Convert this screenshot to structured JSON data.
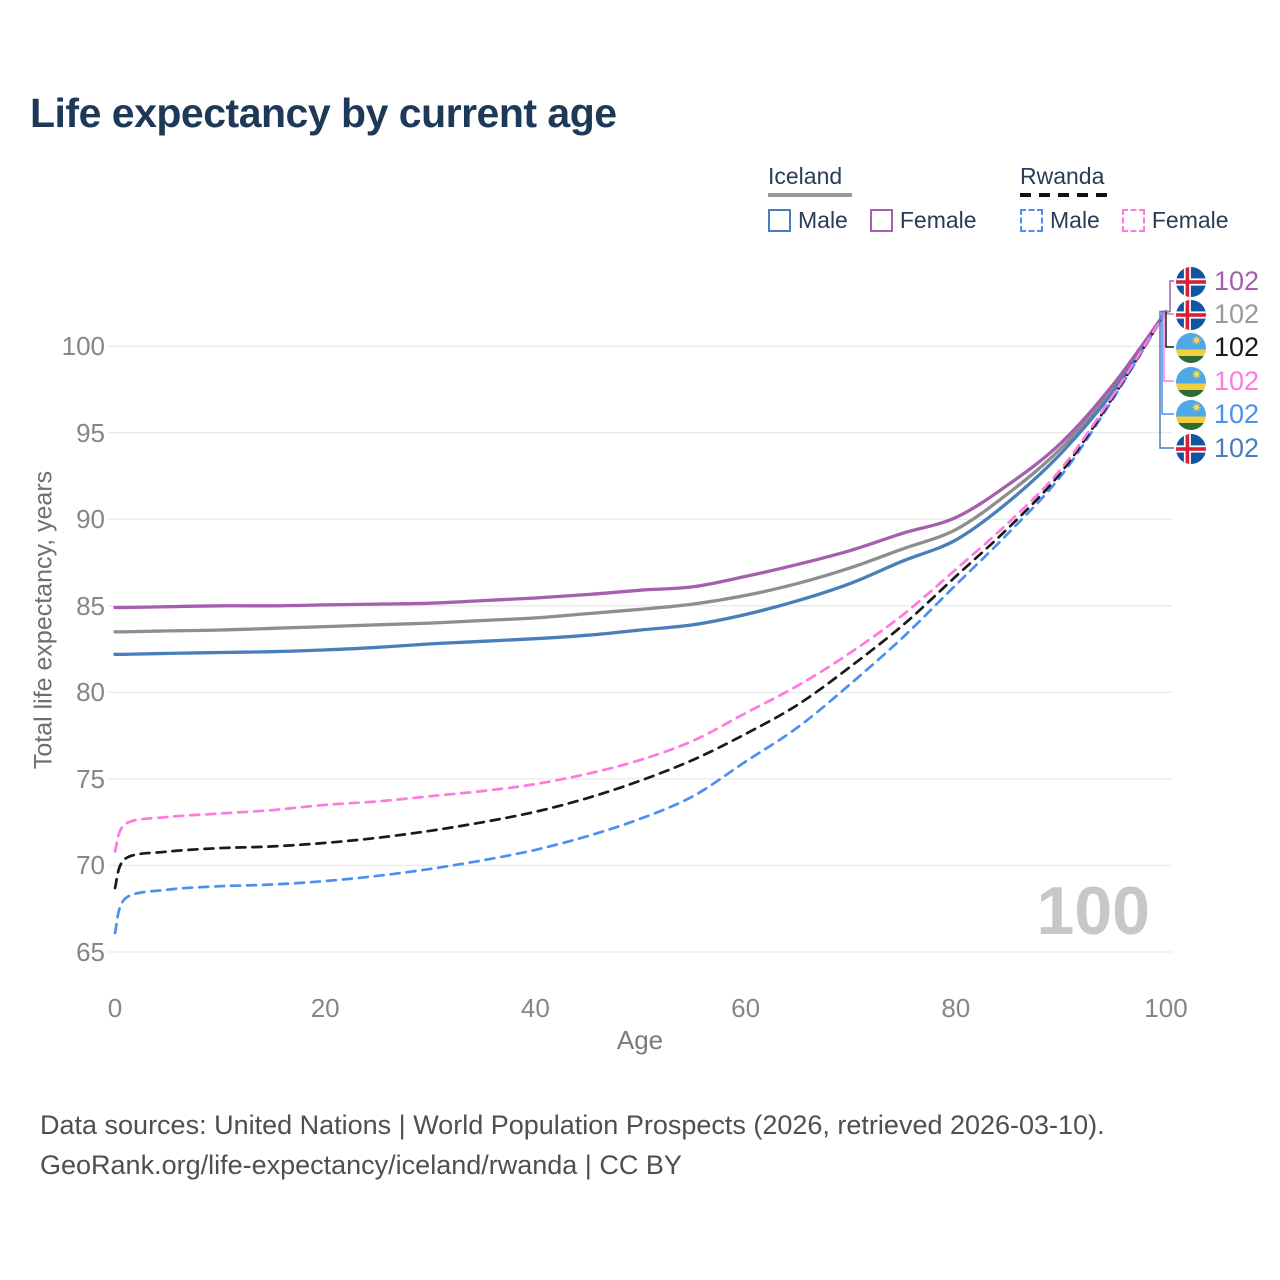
{
  "title": "Life expectancy by current age",
  "legend": {
    "groups": [
      {
        "country": "Iceland",
        "line_style": "solid",
        "underline_color": "#9a9a9a",
        "items": [
          {
            "label": "Male",
            "color": "#4a7ebb"
          },
          {
            "label": "Female",
            "color": "#a55fae"
          }
        ]
      },
      {
        "country": "Rwanda",
        "line_style": "dashed",
        "underline_color": "#111111",
        "items": [
          {
            "label": "Male",
            "color": "#4a90f2"
          },
          {
            "label": "Female",
            "color": "#ff7ae0"
          }
        ]
      }
    ]
  },
  "watermark": "100",
  "end_labels": [
    {
      "country": "iceland",
      "series": "Iceland Female",
      "value": "102",
      "color": "#a55fae"
    },
    {
      "country": "iceland",
      "series": "Iceland Total",
      "value": "102",
      "color": "#9a9a9a"
    },
    {
      "country": "rwanda",
      "series": "Rwanda Total",
      "value": "102",
      "color": "#1a1a1a"
    },
    {
      "country": "rwanda",
      "series": "Rwanda Female",
      "value": "102",
      "color": "#ff7ae0"
    },
    {
      "country": "rwanda",
      "series": "Rwanda Male",
      "value": "102",
      "color": "#4a90f2"
    },
    {
      "country": "iceland",
      "series": "Iceland Male",
      "value": "102",
      "color": "#4a7ebb"
    }
  ],
  "footer": {
    "line1": "Data sources: United Nations | World Population Prospects (2026, retrieved 2026-03-10).",
    "line2": "GeoRank.org/life-expectancy/iceland/rwanda | CC BY"
  },
  "ui_colors": {
    "title": "#1d3957",
    "grid": "#e9e9e9",
    "tick_text": "#868686",
    "watermark": "#c7c7c7"
  },
  "chart_data": {
    "type": "line",
    "title": "Life expectancy by current age",
    "xlabel": "Age",
    "ylabel": "Total life expectancy, years",
    "xlim": [
      0,
      100
    ],
    "ylim": [
      65,
      102
    ],
    "x_ticks": [
      0,
      20,
      40,
      60,
      80,
      100
    ],
    "y_ticks": [
      65,
      70,
      75,
      80,
      85,
      90,
      95,
      100
    ],
    "grid": "horizontal",
    "legend_position": "top-right",
    "x": [
      0,
      1,
      5,
      10,
      15,
      20,
      25,
      30,
      35,
      40,
      45,
      50,
      55,
      60,
      65,
      70,
      75,
      80,
      85,
      90,
      95,
      100
    ],
    "series": [
      {
        "name": "Iceland Total",
        "country": "Iceland",
        "sex": "Total",
        "color": "#8e8e8e",
        "dash": false,
        "values": [
          83.5,
          83.5,
          83.55,
          83.6,
          83.7,
          83.8,
          83.9,
          84.0,
          84.15,
          84.3,
          84.55,
          84.8,
          85.1,
          85.6,
          86.3,
          87.2,
          88.3,
          89.4,
          91.5,
          94.1,
          97.6,
          102
        ]
      },
      {
        "name": "Iceland Male",
        "country": "Iceland",
        "sex": "Male",
        "color": "#4a7ebb",
        "dash": false,
        "values": [
          82.2,
          82.2,
          82.25,
          82.3,
          82.35,
          82.45,
          82.6,
          82.8,
          82.95,
          83.1,
          83.3,
          83.6,
          83.9,
          84.5,
          85.3,
          86.3,
          87.6,
          88.8,
          91.0,
          93.8,
          97.4,
          102
        ]
      },
      {
        "name": "Iceland Female",
        "country": "Iceland",
        "sex": "Female",
        "color": "#a55fae",
        "dash": false,
        "values": [
          84.9,
          84.9,
          84.95,
          85.0,
          85.0,
          85.05,
          85.1,
          85.15,
          85.3,
          85.45,
          85.65,
          85.9,
          86.1,
          86.7,
          87.4,
          88.2,
          89.2,
          90.1,
          92.0,
          94.4,
          97.8,
          102
        ]
      },
      {
        "name": "Rwanda Male",
        "country": "Rwanda",
        "sex": "Male",
        "color": "#4a90f2",
        "dash": true,
        "values": [
          66.1,
          68.1,
          68.6,
          68.8,
          68.9,
          69.1,
          69.4,
          69.8,
          70.3,
          70.9,
          71.7,
          72.7,
          74.0,
          76.0,
          78.0,
          80.5,
          83.2,
          86.2,
          89.2,
          92.5,
          97.0,
          102
        ]
      },
      {
        "name": "Rwanda Total",
        "country": "Rwanda",
        "sex": "Total",
        "color": "#1a1a1a",
        "dash": true,
        "values": [
          68.7,
          70.4,
          70.8,
          71.0,
          71.1,
          71.3,
          71.6,
          72.0,
          72.5,
          73.1,
          73.9,
          74.9,
          76.1,
          77.6,
          79.3,
          81.5,
          83.9,
          86.7,
          89.5,
          92.7,
          97.1,
          102
        ]
      },
      {
        "name": "Rwanda Female",
        "country": "Rwanda",
        "sex": "Female",
        "color": "#ff7ae0",
        "dash": true,
        "values": [
          70.8,
          72.4,
          72.8,
          73.0,
          73.2,
          73.5,
          73.7,
          74.0,
          74.3,
          74.7,
          75.3,
          76.1,
          77.2,
          78.8,
          80.4,
          82.3,
          84.5,
          87.1,
          89.8,
          92.9,
          97.2,
          102
        ]
      }
    ]
  }
}
